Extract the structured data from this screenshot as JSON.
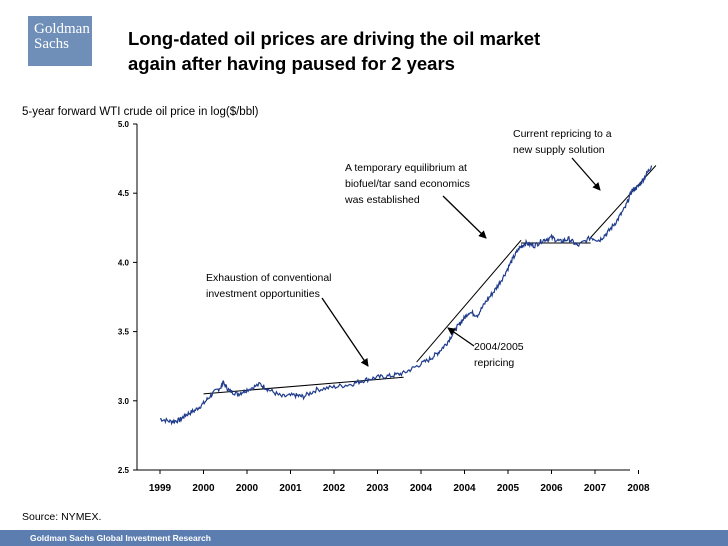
{
  "logo": {
    "line1": "Goldman",
    "line2": "Sachs"
  },
  "title": {
    "line1": "Long-dated oil prices are driving the oil market",
    "line2": "again after having paused for 2 years"
  },
  "source": "Source: NYMEX.",
  "footer": "Goldman Sachs Global Investment Research",
  "colors": {
    "series": "#1f3b8c",
    "logo_bg": "#6f8fb8",
    "footer_bg": "#5b7db0"
  },
  "chart_data": {
    "type": "line",
    "title": "5-year forward WTI crude oil price in log($/bbl)",
    "ylim": [
      2.5,
      5.0
    ],
    "yticks": [
      "2.5",
      "3.0",
      "3.5",
      "4.0",
      "4.5",
      "5.0"
    ],
    "xticks": [
      "1999",
      "2000",
      "2000",
      "2001",
      "2002",
      "2003",
      "2004",
      "2004",
      "2005",
      "2006",
      "2007",
      "2008"
    ],
    "series": [
      {
        "name": "5-year forward WTI",
        "points": [
          [
            0.0,
            2.87
          ],
          [
            0.25,
            2.85
          ],
          [
            0.45,
            2.86
          ],
          [
            0.6,
            2.9
          ],
          [
            0.8,
            2.93
          ],
          [
            1.0,
            2.98
          ],
          [
            1.2,
            3.05
          ],
          [
            1.4,
            3.1
          ],
          [
            1.45,
            3.13
          ],
          [
            1.6,
            3.07
          ],
          [
            1.8,
            3.05
          ],
          [
            2.0,
            3.08
          ],
          [
            2.3,
            3.12
          ],
          [
            2.5,
            3.08
          ],
          [
            2.8,
            3.03
          ],
          [
            3.1,
            3.04
          ],
          [
            3.3,
            3.03
          ],
          [
            3.6,
            3.08
          ],
          [
            4.0,
            3.1
          ],
          [
            4.4,
            3.12
          ],
          [
            4.7,
            3.15
          ],
          [
            5.0,
            3.17
          ],
          [
            5.3,
            3.18
          ],
          [
            5.6,
            3.2
          ],
          [
            5.9,
            3.25
          ],
          [
            6.2,
            3.3
          ],
          [
            6.4,
            3.35
          ],
          [
            6.6,
            3.42
          ],
          [
            6.8,
            3.52
          ],
          [
            6.95,
            3.58
          ],
          [
            7.1,
            3.64
          ],
          [
            7.3,
            3.62
          ],
          [
            7.5,
            3.72
          ],
          [
            7.7,
            3.8
          ],
          [
            7.9,
            3.9
          ],
          [
            8.1,
            4.02
          ],
          [
            8.25,
            4.1
          ],
          [
            8.4,
            4.14
          ],
          [
            8.6,
            4.12
          ],
          [
            8.8,
            4.16
          ],
          [
            9.0,
            4.18
          ],
          [
            9.2,
            4.15
          ],
          [
            9.4,
            4.17
          ],
          [
            9.6,
            4.12
          ],
          [
            9.9,
            4.18
          ],
          [
            10.1,
            4.16
          ],
          [
            10.3,
            4.22
          ],
          [
            10.5,
            4.3
          ],
          [
            10.7,
            4.4
          ],
          [
            10.85,
            4.52
          ],
          [
            11.0,
            4.55
          ],
          [
            11.15,
            4.62
          ],
          [
            11.3,
            4.7
          ]
        ]
      }
    ],
    "trendlines": [
      {
        "from": [
          1.0,
          3.05
        ],
        "to": [
          5.6,
          3.17
        ]
      },
      {
        "from": [
          5.9,
          3.28
        ],
        "to": [
          8.3,
          4.16
        ]
      },
      {
        "from": [
          8.3,
          4.14
        ],
        "to": [
          9.9,
          4.14
        ]
      },
      {
        "from": [
          9.9,
          4.18
        ],
        "to": [
          11.4,
          4.7
        ]
      }
    ],
    "annotations": [
      {
        "text": "Exhaustion of conventional\ninvestment opportunities"
      },
      {
        "text": "A temporary equilibrium at\nbiofuel/tar sand economics\nwas established"
      },
      {
        "text": "Current repricing to a\nnew supply solution"
      },
      {
        "text": "2004/2005\nrepricing"
      }
    ]
  }
}
